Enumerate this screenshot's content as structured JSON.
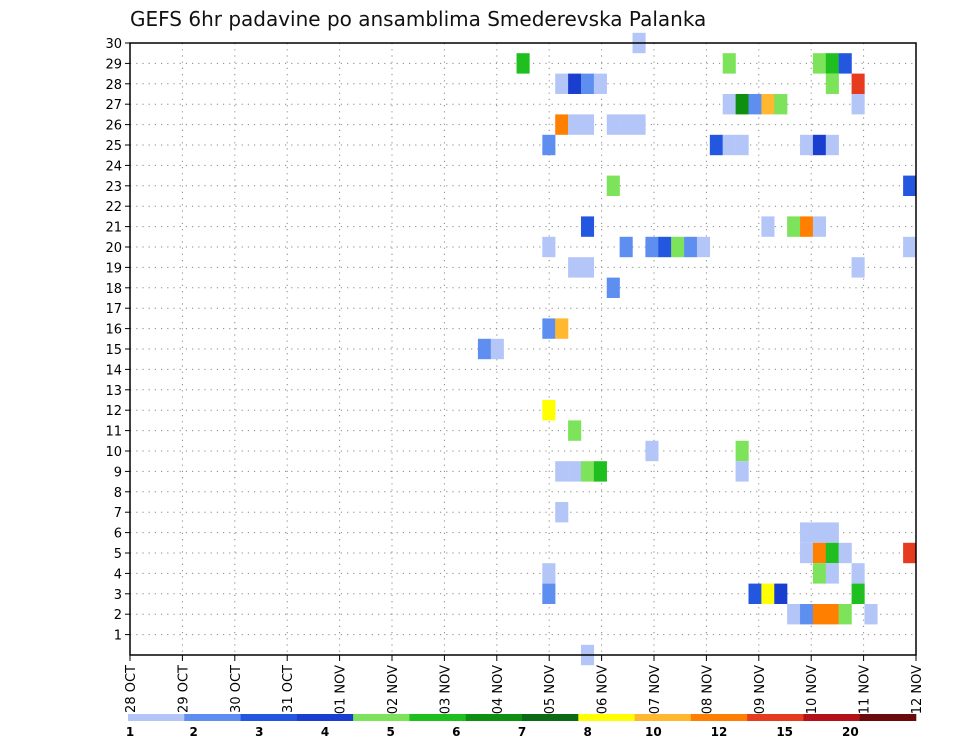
{
  "chart_data": {
    "type": "heatmap",
    "title": "GEFS 6hr padavine po ansamblima Smederevska Palanka",
    "x_tick_labels": [
      "28 OCT",
      "29 OCT",
      "30 OCT",
      "31 OCT",
      "01 NOV",
      "02 NOV",
      "03 NOV",
      "04 NOV",
      "05 NOV",
      "06 NOV",
      "07 NOV",
      "08 NOV",
      "09 NOV",
      "10 NOV",
      "11 NOV",
      "12 NOV"
    ],
    "x_step_hours": 6,
    "x_steps_total": 61,
    "y_range": [
      0,
      30
    ],
    "y_ticks": [
      1,
      2,
      3,
      4,
      5,
      6,
      7,
      8,
      9,
      10,
      11,
      12,
      13,
      14,
      15,
      16,
      17,
      18,
      19,
      20,
      21,
      22,
      23,
      24,
      25,
      26,
      27,
      28,
      29,
      30
    ],
    "grid": true,
    "colorbar": {
      "labels": [
        "1",
        "2",
        "3",
        "4",
        "5",
        "6",
        "7",
        "8",
        "10",
        "12",
        "15",
        "20"
      ],
      "colors": [
        "#b3c6f7",
        "#5e8ef0",
        "#2457e0",
        "#1a3fd0",
        "#7ce35a",
        "#1fbf1f",
        "#0f8f0f",
        "#0b6b14",
        "#ffff00",
        "#ffb830",
        "#ff7f00",
        "#e63b1e",
        "#b3101a",
        "#6b0a0a"
      ]
    },
    "cells": [
      {
        "member": 30,
        "step": 39,
        "value": 1.2
      },
      {
        "member": 29,
        "step": 30,
        "value": 6.5
      },
      {
        "member": 29,
        "step": 46,
        "value": 5.5
      },
      {
        "member": 29,
        "step": 53,
        "value": 5.5
      },
      {
        "member": 29,
        "step": 54,
        "value": 6.5
      },
      {
        "member": 29,
        "step": 55,
        "value": 3.5
      },
      {
        "member": 28,
        "step": 33,
        "value": 1.2
      },
      {
        "member": 28,
        "step": 34,
        "value": 4.5
      },
      {
        "member": 28,
        "step": 35,
        "value": 2
      },
      {
        "member": 28,
        "step": 36,
        "value": 1.2
      },
      {
        "member": 28,
        "step": 54,
        "value": 5.5
      },
      {
        "member": 28,
        "step": 56,
        "value": 22
      },
      {
        "member": 27,
        "step": 46,
        "value": 1.2
      },
      {
        "member": 27,
        "step": 47,
        "value": 7.5
      },
      {
        "member": 27,
        "step": 48,
        "value": 2.5
      },
      {
        "member": 27,
        "step": 49,
        "value": 12
      },
      {
        "member": 27,
        "step": 50,
        "value": 5.5
      },
      {
        "member": 27,
        "step": 56,
        "value": 1.2
      },
      {
        "member": 26,
        "step": 33,
        "value": 17
      },
      {
        "member": 26,
        "step": 34,
        "value": 1.2
      },
      {
        "member": 26,
        "step": 35,
        "value": 1.2
      },
      {
        "member": 26,
        "step": 37,
        "value": 1.2
      },
      {
        "member": 26,
        "step": 38,
        "value": 1.2
      },
      {
        "member": 26,
        "step": 39,
        "value": 1.2
      },
      {
        "member": 25,
        "step": 32,
        "value": 2.5
      },
      {
        "member": 25,
        "step": 45,
        "value": 3.5
      },
      {
        "member": 25,
        "step": 46,
        "value": 1.2
      },
      {
        "member": 25,
        "step": 47,
        "value": 1.2
      },
      {
        "member": 25,
        "step": 52,
        "value": 1.2
      },
      {
        "member": 25,
        "step": 53,
        "value": 4.5
      },
      {
        "member": 25,
        "step": 54,
        "value": 1.2
      },
      {
        "member": 23,
        "step": 37,
        "value": 5.5
      },
      {
        "member": 23,
        "step": 60,
        "value": 3.5
      },
      {
        "member": 21,
        "step": 35,
        "value": 3.5
      },
      {
        "member": 21,
        "step": 49,
        "value": 1.2
      },
      {
        "member": 21,
        "step": 51,
        "value": 5.5
      },
      {
        "member": 21,
        "step": 52,
        "value": 17
      },
      {
        "member": 21,
        "step": 53,
        "value": 1.2
      },
      {
        "member": 20,
        "step": 32,
        "value": 1.2
      },
      {
        "member": 20,
        "step": 38,
        "value": 2.5
      },
      {
        "member": 20,
        "step": 40,
        "value": 2.5
      },
      {
        "member": 20,
        "step": 41,
        "value": 3.5
      },
      {
        "member": 20,
        "step": 42,
        "value": 5.5
      },
      {
        "member": 20,
        "step": 43,
        "value": 2.5
      },
      {
        "member": 20,
        "step": 44,
        "value": 1.2
      },
      {
        "member": 20,
        "step": 60,
        "value": 1.2
      },
      {
        "member": 19,
        "step": 34,
        "value": 1.2
      },
      {
        "member": 19,
        "step": 35,
        "value": 1.2
      },
      {
        "member": 19,
        "step": 56,
        "value": 1.2
      },
      {
        "member": 18,
        "step": 37,
        "value": 2.5
      },
      {
        "member": 16,
        "step": 32,
        "value": 2.5
      },
      {
        "member": 16,
        "step": 33,
        "value": 12
      },
      {
        "member": 15,
        "step": 27,
        "value": 2.5
      },
      {
        "member": 15,
        "step": 28,
        "value": 1.2
      },
      {
        "member": 12,
        "step": 32,
        "value": 10
      },
      {
        "member": 11,
        "step": 34,
        "value": 5.5
      },
      {
        "member": 10,
        "step": 40,
        "value": 1.2
      },
      {
        "member": 10,
        "step": 47,
        "value": 5.5
      },
      {
        "member": 9,
        "step": 33,
        "value": 1.2
      },
      {
        "member": 9,
        "step": 34,
        "value": 1.2
      },
      {
        "member": 9,
        "step": 35,
        "value": 5.5
      },
      {
        "member": 9,
        "step": 36,
        "value": 6.5
      },
      {
        "member": 9,
        "step": 47,
        "value": 1.2
      },
      {
        "member": 7,
        "step": 33,
        "value": 1.2
      },
      {
        "member": 6,
        "step": 52,
        "value": 1.2
      },
      {
        "member": 6,
        "step": 53,
        "value": 1.2
      },
      {
        "member": 6,
        "step": 54,
        "value": 1.2
      },
      {
        "member": 5,
        "step": 52,
        "value": 1.2
      },
      {
        "member": 5,
        "step": 53,
        "value": 15
      },
      {
        "member": 5,
        "step": 54,
        "value": 6.5
      },
      {
        "member": 5,
        "step": 55,
        "value": 1.2
      },
      {
        "member": 5,
        "step": 60,
        "value": 22
      },
      {
        "member": 4,
        "step": 32,
        "value": 1.2
      },
      {
        "member": 4,
        "step": 53,
        "value": 5.5
      },
      {
        "member": 4,
        "step": 54,
        "value": 1.2
      },
      {
        "member": 4,
        "step": 56,
        "value": 1.2
      },
      {
        "member": 3,
        "step": 32,
        "value": 2.5
      },
      {
        "member": 3,
        "step": 48,
        "value": 3.5
      },
      {
        "member": 3,
        "step": 49,
        "value": 10
      },
      {
        "member": 3,
        "step": 50,
        "value": 4.5
      },
      {
        "member": 3,
        "step": 56,
        "value": 6.5
      },
      {
        "member": 2,
        "step": 51,
        "value": 1.2
      },
      {
        "member": 2,
        "step": 52,
        "value": 2.5
      },
      {
        "member": 2,
        "step": 53,
        "value": 15
      },
      {
        "member": 2,
        "step": 54,
        "value": 17
      },
      {
        "member": 2,
        "step": 55,
        "value": 5.5
      },
      {
        "member": 2,
        "step": 57,
        "value": 1.2
      },
      {
        "member": 0,
        "step": 35,
        "value": 1.2
      }
    ]
  }
}
